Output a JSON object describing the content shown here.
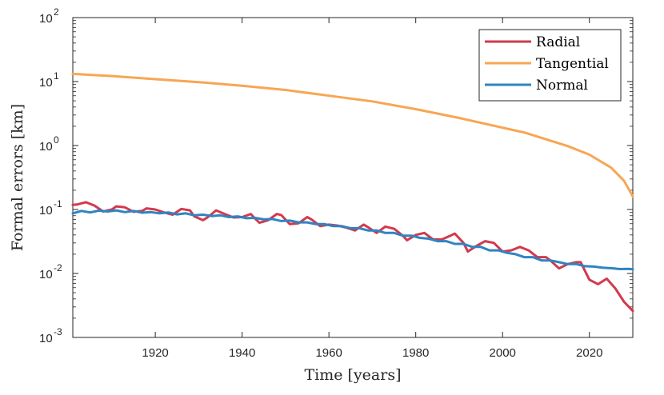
{
  "chart_data": {
    "type": "line",
    "title": "",
    "xlabel": "Time [years]",
    "ylabel": "Formal errors [km]",
    "xlim": [
      1901,
      2030
    ],
    "ylim": [
      0.001,
      100
    ],
    "yscale": "log",
    "grid": false,
    "legend_position": "top-right",
    "x_ticks": [
      {
        "value": 1920,
        "label": "1920"
      },
      {
        "value": 1940,
        "label": "1940"
      },
      {
        "value": 1960,
        "label": "1960"
      },
      {
        "value": 1980,
        "label": "1980"
      },
      {
        "value": 2000,
        "label": "2000"
      },
      {
        "value": 2020,
        "label": "2020"
      }
    ],
    "y_ticks": [
      {
        "value": 0.001,
        "base": "10",
        "exp": "-3"
      },
      {
        "value": 0.01,
        "base": "10",
        "exp": "-2"
      },
      {
        "value": 0.1,
        "base": "10",
        "exp": "-1"
      },
      {
        "value": 1,
        "base": "10",
        "exp": "0"
      },
      {
        "value": 10,
        "base": "10",
        "exp": "1"
      },
      {
        "value": 100,
        "base": "10",
        "exp": "2"
      }
    ],
    "series": [
      {
        "name": "Radial",
        "color": "#d13a4d",
        "points": [
          [
            1901,
            0.118
          ],
          [
            1902,
            0.12
          ],
          [
            1904,
            0.13
          ],
          [
            1906,
            0.115
          ],
          [
            1908,
            0.093
          ],
          [
            1910,
            0.1
          ],
          [
            1911,
            0.112
          ],
          [
            1913,
            0.108
          ],
          [
            1915,
            0.092
          ],
          [
            1917,
            0.095
          ],
          [
            1918,
            0.104
          ],
          [
            1920,
            0.1
          ],
          [
            1922,
            0.09
          ],
          [
            1924,
            0.083
          ],
          [
            1926,
            0.102
          ],
          [
            1928,
            0.097
          ],
          [
            1929,
            0.078
          ],
          [
            1931,
            0.068
          ],
          [
            1932,
            0.075
          ],
          [
            1934,
            0.097
          ],
          [
            1936,
            0.085
          ],
          [
            1938,
            0.075
          ],
          [
            1940,
            0.076
          ],
          [
            1942,
            0.085
          ],
          [
            1943,
            0.072
          ],
          [
            1944,
            0.062
          ],
          [
            1946,
            0.068
          ],
          [
            1948,
            0.085
          ],
          [
            1949,
            0.082
          ],
          [
            1951,
            0.059
          ],
          [
            1953,
            0.061
          ],
          [
            1955,
            0.076
          ],
          [
            1956,
            0.07
          ],
          [
            1958,
            0.055
          ],
          [
            1960,
            0.058
          ],
          [
            1962,
            0.056
          ],
          [
            1964,
            0.052
          ],
          [
            1966,
            0.047
          ],
          [
            1968,
            0.058
          ],
          [
            1969,
            0.053
          ],
          [
            1971,
            0.043
          ],
          [
            1973,
            0.054
          ],
          [
            1975,
            0.05
          ],
          [
            1977,
            0.039
          ],
          [
            1978,
            0.033
          ],
          [
            1980,
            0.04
          ],
          [
            1982,
            0.043
          ],
          [
            1984,
            0.034
          ],
          [
            1986,
            0.034
          ],
          [
            1988,
            0.039
          ],
          [
            1989,
            0.042
          ],
          [
            1991,
            0.03
          ],
          [
            1992,
            0.022
          ],
          [
            1994,
            0.027
          ],
          [
            1996,
            0.032
          ],
          [
            1998,
            0.03
          ],
          [
            2000,
            0.022
          ],
          [
            2002,
            0.023
          ],
          [
            2004,
            0.026
          ],
          [
            2006,
            0.023
          ],
          [
            2008,
            0.018
          ],
          [
            2010,
            0.018
          ],
          [
            2011,
            0.016
          ],
          [
            2013,
            0.012
          ],
          [
            2015,
            0.014
          ],
          [
            2017,
            0.015
          ],
          [
            2018,
            0.015
          ],
          [
            2020,
            0.008
          ],
          [
            2022,
            0.0068
          ],
          [
            2024,
            0.0083
          ],
          [
            2026,
            0.0058
          ],
          [
            2028,
            0.0036
          ],
          [
            2030,
            0.0026
          ]
        ]
      },
      {
        "name": "Tangential",
        "color": "#f7a654",
        "points": [
          [
            1901,
            13.2
          ],
          [
            1910,
            12.2
          ],
          [
            1920,
            10.9
          ],
          [
            1930,
            9.8
          ],
          [
            1940,
            8.6
          ],
          [
            1950,
            7.4
          ],
          [
            1960,
            6.0
          ],
          [
            1970,
            4.9
          ],
          [
            1980,
            3.7
          ],
          [
            1990,
            2.7
          ],
          [
            2000,
            1.9
          ],
          [
            2005,
            1.6
          ],
          [
            2010,
            1.25
          ],
          [
            2015,
            0.98
          ],
          [
            2020,
            0.72
          ],
          [
            2025,
            0.45
          ],
          [
            2028,
            0.28
          ],
          [
            2030,
            0.16
          ]
        ]
      },
      {
        "name": "Normal",
        "color": "#2f84c1",
        "points": [
          [
            1901,
            0.087
          ],
          [
            1903,
            0.095
          ],
          [
            1905,
            0.09
          ],
          [
            1907,
            0.096
          ],
          [
            1909,
            0.093
          ],
          [
            1911,
            0.097
          ],
          [
            1913,
            0.091
          ],
          [
            1915,
            0.095
          ],
          [
            1917,
            0.089
          ],
          [
            1919,
            0.091
          ],
          [
            1921,
            0.087
          ],
          [
            1923,
            0.09
          ],
          [
            1925,
            0.084
          ],
          [
            1927,
            0.087
          ],
          [
            1929,
            0.081
          ],
          [
            1931,
            0.083
          ],
          [
            1933,
            0.079
          ],
          [
            1935,
            0.081
          ],
          [
            1937,
            0.076
          ],
          [
            1939,
            0.078
          ],
          [
            1941,
            0.073
          ],
          [
            1943,
            0.074
          ],
          [
            1945,
            0.07
          ],
          [
            1947,
            0.071
          ],
          [
            1949,
            0.066
          ],
          [
            1951,
            0.067
          ],
          [
            1953,
            0.063
          ],
          [
            1955,
            0.063
          ],
          [
            1957,
            0.059
          ],
          [
            1959,
            0.059
          ],
          [
            1961,
            0.055
          ],
          [
            1963,
            0.055
          ],
          [
            1965,
            0.051
          ],
          [
            1967,
            0.051
          ],
          [
            1969,
            0.047
          ],
          [
            1971,
            0.047
          ],
          [
            1973,
            0.043
          ],
          [
            1975,
            0.043
          ],
          [
            1977,
            0.039
          ],
          [
            1979,
            0.039
          ],
          [
            1981,
            0.036
          ],
          [
            1983,
            0.035
          ],
          [
            1985,
            0.032
          ],
          [
            1987,
            0.032
          ],
          [
            1989,
            0.029
          ],
          [
            1991,
            0.029
          ],
          [
            1993,
            0.026
          ],
          [
            1995,
            0.026
          ],
          [
            1997,
            0.023
          ],
          [
            1999,
            0.023
          ],
          [
            2001,
            0.021
          ],
          [
            2003,
            0.02
          ],
          [
            2005,
            0.018
          ],
          [
            2007,
            0.018
          ],
          [
            2009,
            0.016
          ],
          [
            2011,
            0.016
          ],
          [
            2013,
            0.015
          ],
          [
            2015,
            0.014
          ],
          [
            2017,
            0.014
          ],
          [
            2019,
            0.013
          ],
          [
            2021,
            0.0128
          ],
          [
            2023,
            0.0123
          ],
          [
            2025,
            0.0121
          ],
          [
            2027,
            0.0117
          ],
          [
            2029,
            0.0118
          ],
          [
            2030,
            0.0116
          ]
        ]
      }
    ]
  }
}
